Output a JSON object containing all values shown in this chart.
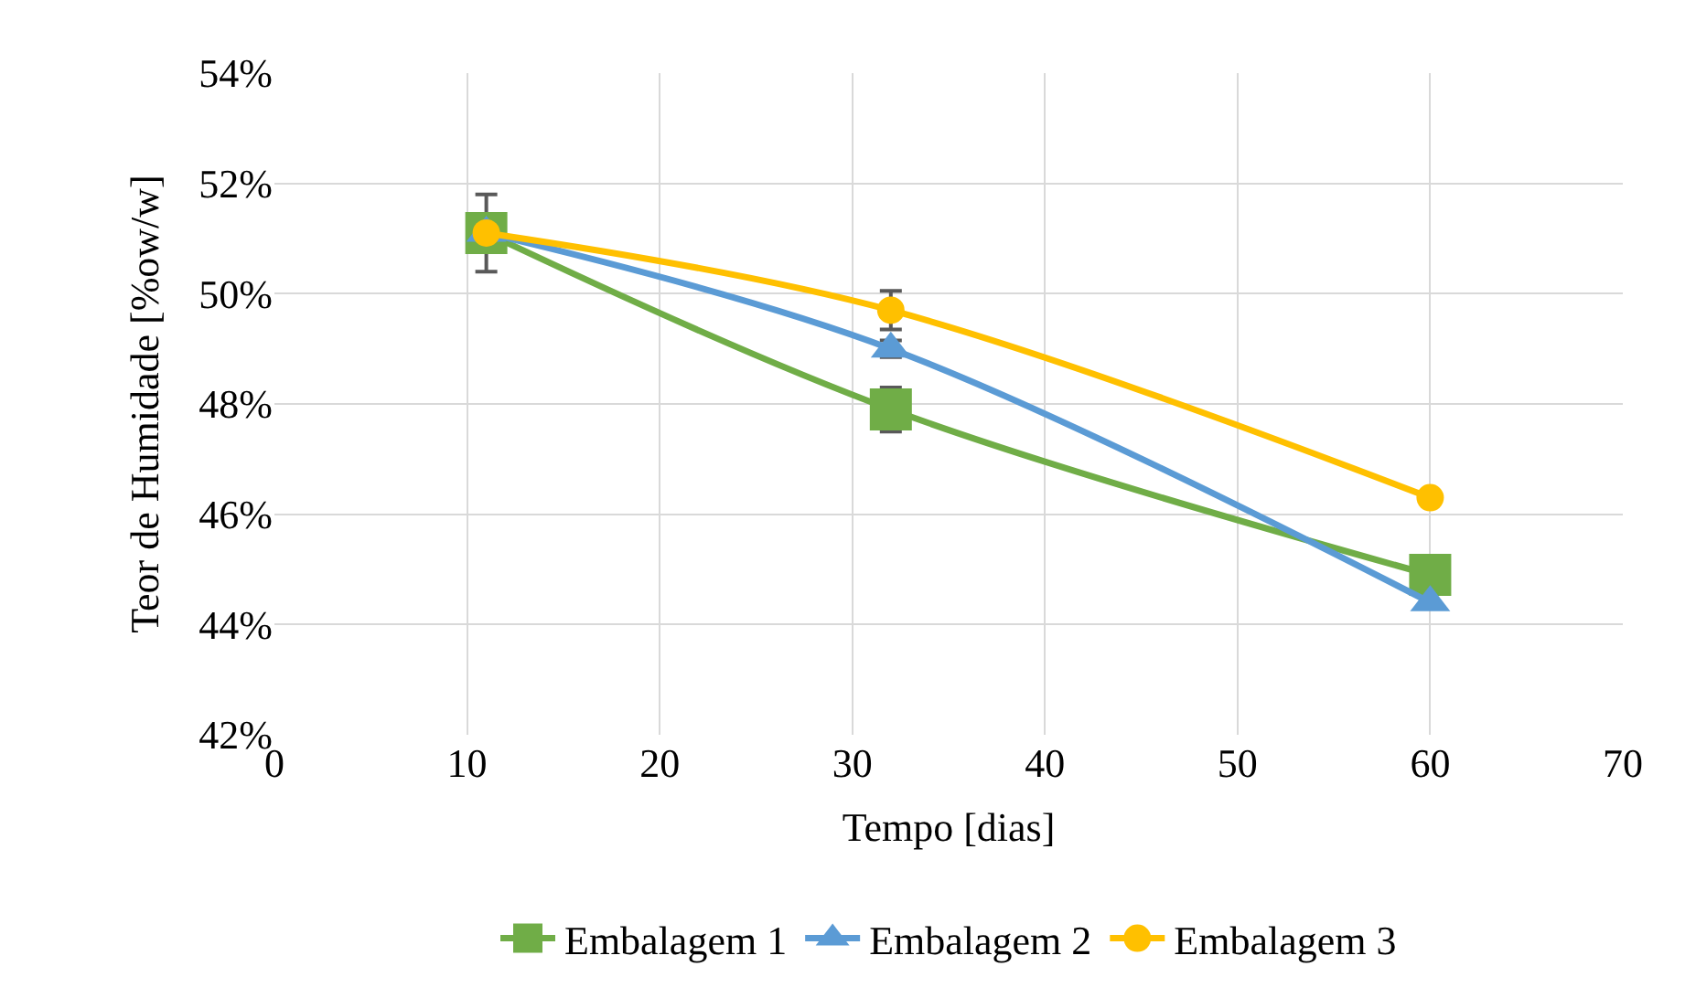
{
  "chart_data": {
    "type": "line",
    "xlabel": "Tempo [dias]",
    "ylabel": "Teor de Humidade [%ow/w]",
    "x": [
      11,
      32,
      60
    ],
    "series": [
      {
        "name": "Embalagem 1",
        "color": "#70ad47",
        "marker": "square",
        "values": [
          51.1,
          47.9,
          44.9
        ],
        "errors": [
          0.7,
          0.4,
          null
        ]
      },
      {
        "name": "Embalagem 2",
        "color": "#5b9bd5",
        "marker": "triangle",
        "values": [
          51.1,
          49.0,
          44.4
        ],
        "errors": [
          null,
          0.15,
          null
        ]
      },
      {
        "name": "Embalagem 3",
        "color": "#ffc000",
        "marker": "circle",
        "values": [
          51.1,
          49.7,
          46.3
        ],
        "errors": [
          null,
          0.35,
          null
        ]
      }
    ],
    "xlim": [
      0,
      70
    ],
    "xticks": [
      0,
      10,
      20,
      30,
      40,
      50,
      60,
      70
    ],
    "ylim": [
      42,
      54
    ],
    "yticks": [
      {
        "value": 42,
        "label": "42%"
      },
      {
        "value": 44,
        "label": "44%"
      },
      {
        "value": 46,
        "label": "46%"
      },
      {
        "value": 48,
        "label": "48%"
      },
      {
        "value": 50,
        "label": "50%"
      },
      {
        "value": 52,
        "label": "52%"
      },
      {
        "value": 54,
        "label": "54%"
      }
    ],
    "grid": true,
    "legend": "bottom",
    "line_style": "solid"
  }
}
